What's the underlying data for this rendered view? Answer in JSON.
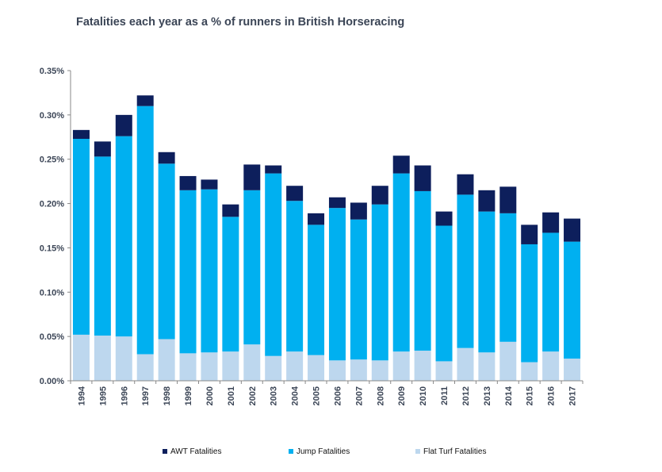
{
  "chart_data": {
    "type": "bar",
    "stacked": true,
    "title": "Fatalities each year as a % of runners in British Horseracing",
    "xlabel": "",
    "ylabel": "",
    "categories": [
      "1994",
      "1995",
      "1996",
      "1997",
      "1998",
      "1999",
      "2000",
      "2001",
      "2002",
      "2003",
      "2004",
      "2005",
      "2006",
      "2007",
      "2008",
      "2009",
      "2010",
      "2011",
      "2012",
      "2013",
      "2014",
      "2015",
      "2016",
      "2017"
    ],
    "series": [
      {
        "name": "Flat Turf Fatalities",
        "color": "#bdd7ee",
        "values": [
          0.052,
          0.051,
          0.05,
          0.03,
          0.047,
          0.031,
          0.032,
          0.033,
          0.041,
          0.028,
          0.033,
          0.029,
          0.023,
          0.024,
          0.023,
          0.033,
          0.034,
          0.022,
          0.037,
          0.032,
          0.044,
          0.021,
          0.033,
          0.025
        ]
      },
      {
        "name": "Jump Fatalities",
        "color": "#00b0f0",
        "values": [
          0.221,
          0.202,
          0.226,
          0.28,
          0.198,
          0.184,
          0.184,
          0.152,
          0.174,
          0.206,
          0.17,
          0.147,
          0.172,
          0.158,
          0.176,
          0.201,
          0.18,
          0.153,
          0.173,
          0.159,
          0.145,
          0.133,
          0.134,
          0.132
        ]
      },
      {
        "name": "AWT Fatalities",
        "color": "#0d1f5c",
        "values": [
          0.01,
          0.017,
          0.024,
          0.012,
          0.013,
          0.016,
          0.011,
          0.014,
          0.029,
          0.009,
          0.017,
          0.013,
          0.012,
          0.019,
          0.021,
          0.02,
          0.029,
          0.016,
          0.023,
          0.024,
          0.03,
          0.022,
          0.023,
          0.026
        ]
      }
    ],
    "y_ticks": [
      "0.00%",
      "0.05%",
      "0.10%",
      "0.15%",
      "0.20%",
      "0.25%",
      "0.30%",
      "0.35%"
    ],
    "ylim": [
      0,
      0.35
    ],
    "grid": false,
    "legend_position": "bottom"
  },
  "legend": [
    {
      "label": "AWT Fatalities",
      "color": "#0d1f5c"
    },
    {
      "label": "Jump Fatalities",
      "color": "#00b0f0"
    },
    {
      "label": "Flat Turf Fatalities",
      "color": "#bdd7ee"
    }
  ]
}
